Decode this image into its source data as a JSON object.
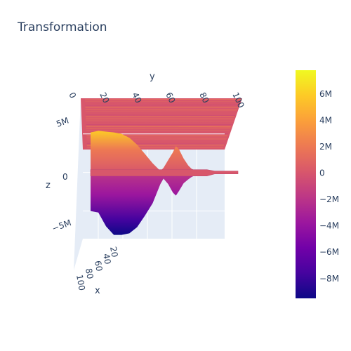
{
  "chart_data": {
    "type": "surface",
    "title": "Transformation",
    "xlabel": "x",
    "ylabel": "y",
    "zlabel": "z",
    "x_ticks": [
      "20",
      "40",
      "60",
      "80",
      "100"
    ],
    "y_ticks": [
      "0",
      "20",
      "40",
      "60",
      "80",
      "100"
    ],
    "z_ticks": [
      "5M",
      "0",
      "−5M"
    ],
    "xlim": [
      0,
      100
    ],
    "ylim": [
      0,
      105
    ],
    "zlim": [
      -9500000,
      7800000
    ],
    "colorbar": {
      "ticks": [
        "6M",
        "4M",
        "2M",
        "0",
        "−2M",
        "−4M",
        "−6M",
        "−8M"
      ],
      "tick_values": [
        6000000,
        4000000,
        2000000,
        0,
        -2000000,
        -4000000,
        -6000000,
        -8000000
      ],
      "range": [
        -9500000,
        7800000
      ],
      "colorscale": [
        "#0d0887",
        "#46039f",
        "#7201a8",
        "#9c179e",
        "#bd3786",
        "#d8576b",
        "#ed7953",
        "#fb9f3a",
        "#fdca26",
        "#f0f921"
      ]
    },
    "surface_profile": {
      "y": [
        5,
        10,
        15,
        20,
        25,
        30,
        35,
        40,
        45,
        50,
        52,
        55,
        58,
        60,
        62,
        65,
        68,
        70,
        72,
        75,
        80,
        85,
        90,
        95,
        100
      ],
      "z_top": [
        5200000,
        5400000,
        5300000,
        5200000,
        5000000,
        4500000,
        3600000,
        2400000,
        1200000,
        200000,
        600000,
        1600000,
        2600000,
        3400000,
        3000000,
        1800000,
        900000,
        500000,
        300000,
        200000,
        100000,
        50000,
        100000,
        40000,
        0
      ],
      "z_bottom": [
        -5000000,
        -5200000,
        -7000000,
        -8100000,
        -8100000,
        -7900000,
        -7100000,
        -5600000,
        -4000000,
        -1500000,
        -800000,
        -1500000,
        -2600000,
        -3000000,
        -2400000,
        -1400000,
        -900000,
        -600000,
        -400000,
        -200000,
        -100000,
        -50000,
        -50000,
        -20000,
        0
      ]
    }
  }
}
